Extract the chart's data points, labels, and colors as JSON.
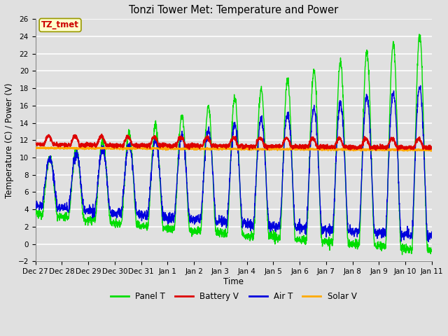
{
  "title": "Tonzi Tower Met: Temperature and Power",
  "xlabel": "Time",
  "ylabel": "Temperature (C) / Power (V)",
  "ylim": [
    -2,
    26
  ],
  "yticks": [
    -2,
    0,
    2,
    4,
    6,
    8,
    10,
    12,
    14,
    16,
    18,
    20,
    22,
    24,
    26
  ],
  "bg_color": "#e0e0e0",
  "plot_bg_color": "#e0e0e0",
  "grid_color": "#ffffff",
  "annotation_text": "TZ_tmet",
  "annotation_bg": "#ffffcc",
  "annotation_fg": "#cc0000",
  "annotation_border": "#999900",
  "colors": {
    "panel_t": "#00dd00",
    "battery_v": "#dd0000",
    "air_t": "#0000dd",
    "solar_v": "#ffaa00"
  },
  "legend_labels": [
    "Panel T",
    "Battery V",
    "Air T",
    "Solar V"
  ],
  "x_tick_labels": [
    "Dec 27",
    "Dec 28",
    "Dec 29",
    "Dec 30",
    "Dec 31",
    "Jan 1",
    "Jan 2",
    "Jan 3",
    "Jan 4",
    "Jan 5",
    "Jan 6",
    "Jan 7",
    "Jan 8",
    "Jan 9",
    "Jan 10",
    "Jan 11"
  ],
  "n_days": 15,
  "pts_per_day": 144
}
